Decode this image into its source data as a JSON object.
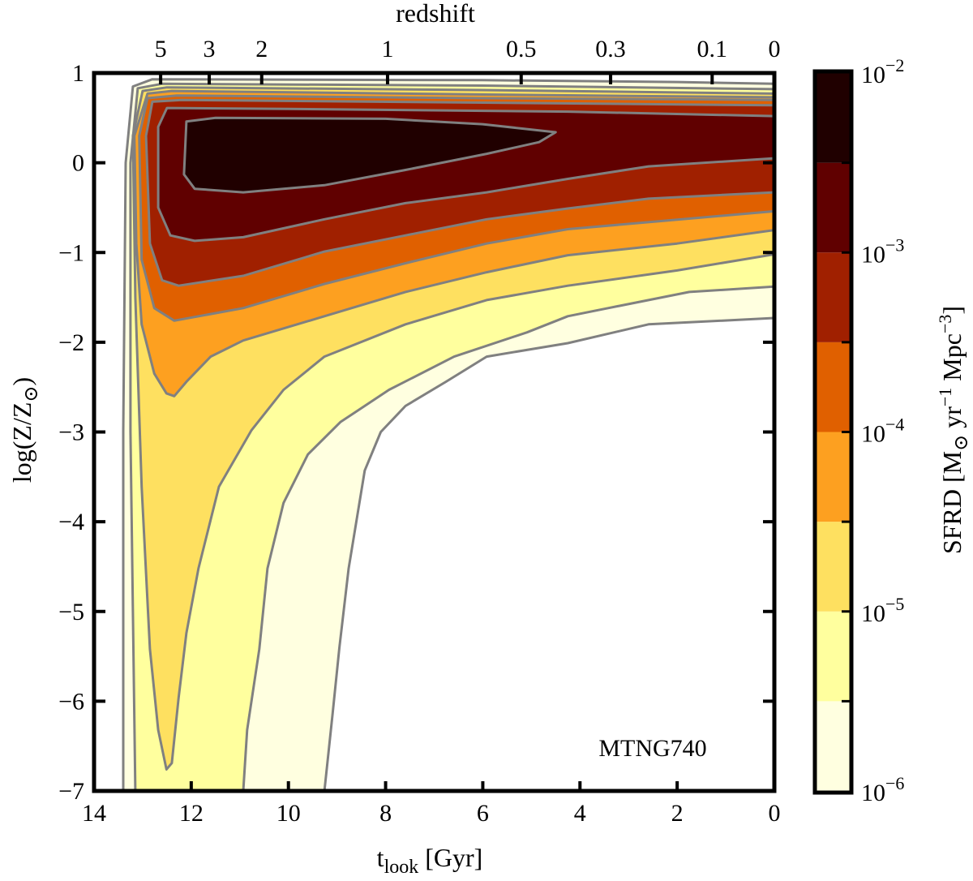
{
  "chart_data": {
    "type": "contour",
    "annotation": "MTNG740",
    "xlabel": {
      "main": "t",
      "sub": "look",
      "rest": " [Gyr]"
    },
    "ylabel": {
      "pre": "log(Z/Z",
      "sub": "⊙",
      "post": ")"
    },
    "top_axis_label": "redshift",
    "xlim": [
      14,
      0
    ],
    "ylim": [
      -7,
      1
    ],
    "x_ticks": [
      14,
      12,
      10,
      8,
      6,
      4,
      2,
      0
    ],
    "x_tick_labels": [
      "14",
      "12",
      "10",
      "8",
      "6",
      "4",
      "2",
      "0"
    ],
    "y_ticks": [
      1,
      0,
      -1,
      -2,
      -3,
      -4,
      -5,
      -6,
      -7
    ],
    "y_tick_labels": [
      "1",
      "0",
      "−1",
      "−2",
      "−3",
      "−4",
      "−5",
      "−6",
      "−7"
    ],
    "redshift_ticks": [
      {
        "label": "5",
        "t": 12.63
      },
      {
        "label": "3",
        "t": 11.63
      },
      {
        "label": "2",
        "t": 10.55
      },
      {
        "label": "1",
        "t": 7.96
      },
      {
        "label": "0.5",
        "t": 5.21
      },
      {
        "label": "0.3",
        "t": 3.37
      },
      {
        "label": "0.1",
        "t": 1.28
      },
      {
        "label": "0",
        "t": 0
      }
    ],
    "colorbar": {
      "label": {
        "pre": "SFRD [M",
        "sub": "⊙",
        "mid": " yr",
        "exp1": "−1",
        "mid2": " Mpc",
        "exp2": "−3",
        "post": "]"
      },
      "scale": "log",
      "range": [
        1e-06,
        0.01
      ],
      "tick_labels": [
        {
          "base": "10",
          "exp": "−2",
          "value": 0.01
        },
        {
          "base": "10",
          "exp": "−3",
          "value": 0.001
        },
        {
          "base": "10",
          "exp": "−4",
          "value": 0.0001
        },
        {
          "base": "10",
          "exp": "−5",
          "value": 1e-05
        },
        {
          "base": "10",
          "exp": "−6",
          "value": 1e-06
        }
      ],
      "levels_log10": [
        -6,
        -5.5,
        -5,
        -4.5,
        -4,
        -3.5,
        -3,
        -2.5,
        -2
      ],
      "colors": [
        "#ffffe0",
        "#ffff9e",
        "#fee060",
        "#fda020",
        "#e06000",
        "#a02000",
        "#600000",
        "#200000"
      ]
    },
    "contour_color": "#808080",
    "contours": [
      {
        "level_log10": -6,
        "color": "#ffffe0",
        "boundary": [
          [
            13.4,
            -7
          ],
          [
            13.4,
            -3
          ],
          [
            13.35,
            0
          ],
          [
            13.2,
            0.85
          ],
          [
            12.8,
            0.93
          ],
          [
            6,
            0.92
          ],
          [
            2,
            0.9
          ],
          [
            0,
            0.88
          ],
          [
            0,
            -1.73
          ],
          [
            2.59,
            -1.8
          ],
          [
            4.25,
            -2.01
          ],
          [
            5.92,
            -2.16
          ],
          [
            6.76,
            -2.44
          ],
          [
            7.59,
            -2.71
          ],
          [
            8.1,
            -3.0
          ],
          [
            8.43,
            -3.43
          ],
          [
            8.76,
            -4.52
          ],
          [
            8.95,
            -5.4
          ],
          [
            9.09,
            -6.14
          ],
          [
            9.26,
            -7
          ]
        ]
      },
      {
        "level_log10": -5.5,
        "color": "#ffff9e",
        "boundary": [
          [
            13.15,
            -7
          ],
          [
            13.25,
            -3
          ],
          [
            13.25,
            0
          ],
          [
            13.1,
            0.83
          ],
          [
            12.6,
            0.88
          ],
          [
            6,
            0.86
          ],
          [
            0,
            0.82
          ],
          [
            0,
            -1.38
          ],
          [
            1.75,
            -1.44
          ],
          [
            3.42,
            -1.62
          ],
          [
            4.25,
            -1.71
          ],
          [
            5.09,
            -1.89
          ],
          [
            6.59,
            -2.16
          ],
          [
            7.93,
            -2.53
          ],
          [
            8.93,
            -2.89
          ],
          [
            9.6,
            -3.25
          ],
          [
            10.1,
            -3.79
          ],
          [
            10.43,
            -4.52
          ],
          [
            10.6,
            -5.42
          ],
          [
            10.85,
            -6.32
          ],
          [
            10.93,
            -7
          ]
        ]
      },
      {
        "level_log10": -5,
        "color": "#fee060",
        "boundary": [
          [
            13.0,
            0.8
          ],
          [
            12.5,
            0.84
          ],
          [
            6,
            0.81
          ],
          [
            0,
            0.77
          ],
          [
            0,
            -1.02
          ],
          [
            2,
            -1.2
          ],
          [
            4.25,
            -1.37
          ],
          [
            5.92,
            -1.53
          ],
          [
            7.59,
            -1.8
          ],
          [
            9.26,
            -2.16
          ],
          [
            10.1,
            -2.53
          ],
          [
            10.76,
            -2.98
          ],
          [
            11.43,
            -3.61
          ],
          [
            11.85,
            -4.52
          ],
          [
            12.1,
            -5.24
          ],
          [
            12.26,
            -5.96
          ],
          [
            12.4,
            -6.69
          ],
          [
            12.51,
            -6.76
          ],
          [
            12.68,
            -6.32
          ],
          [
            12.85,
            -5.42
          ],
          [
            13.02,
            -3.61
          ],
          [
            13.15,
            -1.5
          ],
          [
            13.2,
            0.3
          ]
        ]
      },
      {
        "level_log10": -4.5,
        "color": "#fda020",
        "boundary": [
          [
            12.9,
            0.77
          ],
          [
            12.4,
            0.8
          ],
          [
            6,
            0.76
          ],
          [
            0,
            0.73
          ],
          [
            0,
            -0.75
          ],
          [
            2,
            -0.9
          ],
          [
            4.25,
            -1.03
          ],
          [
            5.92,
            -1.22
          ],
          [
            7.59,
            -1.44
          ],
          [
            9.26,
            -1.71
          ],
          [
            10.93,
            -1.98
          ],
          [
            11.6,
            -2.16
          ],
          [
            12.1,
            -2.44
          ],
          [
            12.35,
            -2.6
          ],
          [
            12.51,
            -2.57
          ],
          [
            12.76,
            -2.35
          ],
          [
            13.02,
            -1.8
          ],
          [
            13.13,
            -0.9
          ],
          [
            13.17,
            0.3
          ]
        ]
      },
      {
        "level_log10": -4,
        "color": "#e06000",
        "boundary": [
          [
            12.9,
            0.72
          ],
          [
            12.3,
            0.75
          ],
          [
            6,
            0.72
          ],
          [
            0,
            0.7
          ],
          [
            0,
            -0.54
          ],
          [
            4.25,
            -0.74
          ],
          [
            5.92,
            -0.9
          ],
          [
            7.59,
            -1.12
          ],
          [
            9.26,
            -1.35
          ],
          [
            10.93,
            -1.62
          ],
          [
            12.35,
            -1.76
          ],
          [
            12.76,
            -1.62
          ],
          [
            13.02,
            -1.08
          ],
          [
            13.07,
            0.3
          ]
        ]
      },
      {
        "level_log10": -3.5,
        "color": "#a02000",
        "boundary": [
          [
            12.8,
            0.68
          ],
          [
            12.2,
            0.7
          ],
          [
            6,
            0.67
          ],
          [
            0,
            0.64
          ],
          [
            0,
            -0.33
          ],
          [
            2.59,
            -0.4
          ],
          [
            4.25,
            -0.51
          ],
          [
            5.92,
            -0.63
          ],
          [
            7.59,
            -0.81
          ],
          [
            9.26,
            -0.99
          ],
          [
            10.93,
            -1.26
          ],
          [
            12.26,
            -1.37
          ],
          [
            12.6,
            -1.31
          ],
          [
            12.85,
            -0.9
          ],
          [
            12.93,
            0.3
          ]
        ]
      },
      {
        "level_log10": -3,
        "color": "#600000",
        "boundary": [
          [
            12.5,
            0.61
          ],
          [
            10,
            0.6
          ],
          [
            4.25,
            0.57
          ],
          [
            0,
            0.52
          ],
          [
            0,
            0.05
          ],
          [
            2.59,
            -0.04
          ],
          [
            4.25,
            -0.18
          ],
          [
            5.92,
            -0.33
          ],
          [
            7.59,
            -0.45
          ],
          [
            9.26,
            -0.63
          ],
          [
            10.93,
            -0.83
          ],
          [
            11.93,
            -0.87
          ],
          [
            12.43,
            -0.81
          ],
          [
            12.68,
            -0.5
          ],
          [
            12.68,
            0.4
          ]
        ]
      },
      {
        "level_log10": -2.5,
        "color": "#200000",
        "boundary": [
          [
            12.1,
            0.46
          ],
          [
            11.5,
            0.5
          ],
          [
            8,
            0.49
          ],
          [
            6,
            0.43
          ],
          [
            4.5,
            0.34
          ],
          [
            4.84,
            0.23
          ],
          [
            5.92,
            0.1
          ],
          [
            7.59,
            -0.08
          ],
          [
            9.26,
            -0.25
          ],
          [
            10.93,
            -0.33
          ],
          [
            11.93,
            -0.29
          ],
          [
            12.15,
            -0.13
          ]
        ]
      }
    ]
  }
}
